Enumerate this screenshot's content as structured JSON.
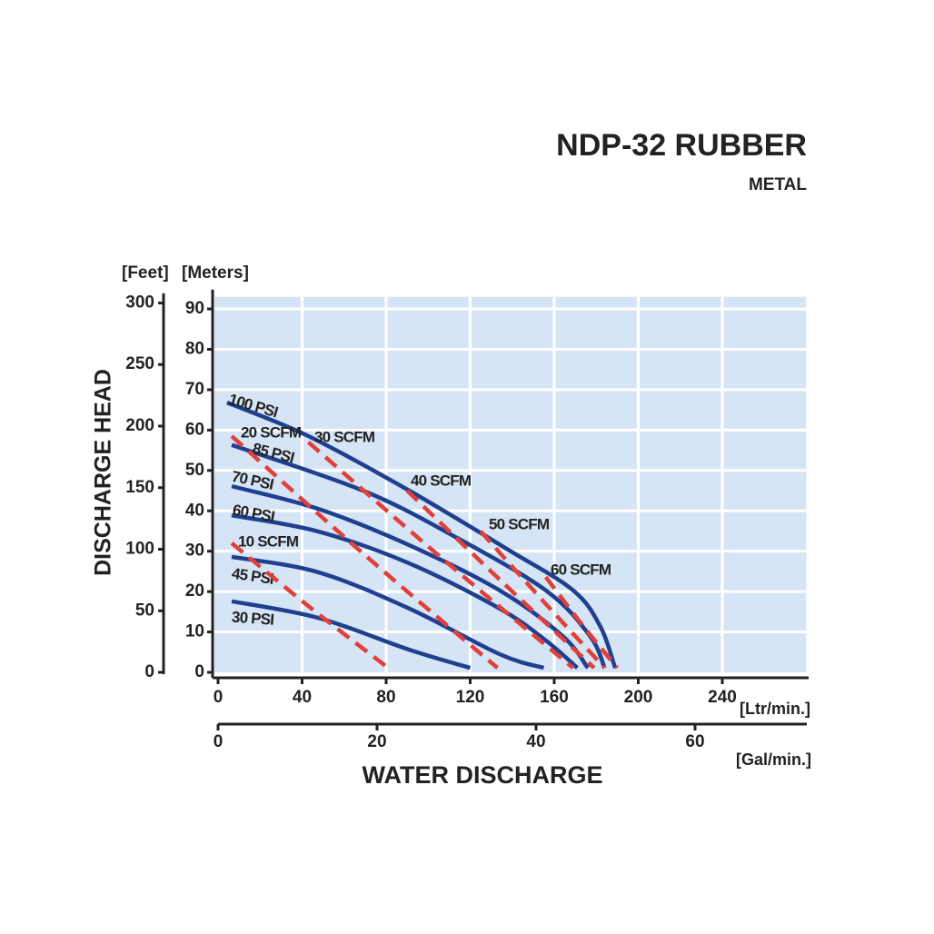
{
  "chart_data": {
    "type": "line",
    "title": "NDP-32 RUBBER",
    "subtitle": "METAL",
    "y_label": "DISCHARGE HEAD",
    "y2_unit": "[Feet]",
    "y_unit": "[Meters]",
    "x_unit": "[Ltr/min.]",
    "x2_unit": "[Gal/min.]",
    "x_label": "WATER DISCHARGE",
    "xlim": [
      0,
      280
    ],
    "xticks": [
      0,
      40,
      80,
      120,
      160,
      200,
      240
    ],
    "x2lim": [
      0,
      74
    ],
    "x2ticks": [
      0,
      20,
      40,
      60
    ],
    "ylim": [
      0,
      93
    ],
    "yticks": [
      0,
      10,
      20,
      30,
      40,
      50,
      60,
      70,
      80,
      90
    ],
    "y2lim": [
      0,
      305
    ],
    "y2ticks": [
      0,
      50,
      100,
      150,
      200,
      250,
      300
    ],
    "grid": true,
    "background": "#d6e5f5",
    "series": [
      {
        "name": "100 PSI",
        "color": "#1f3f8f",
        "dashed": false,
        "x": [
          4.3,
          43,
          91,
          138,
          169,
          182,
          189
        ],
        "values": [
          66.8,
          58.5,
          45,
          30.4,
          20.3,
          11.3,
          1.1
        ]
      },
      {
        "name": "85 PSI",
        "color": "#1f3f8f",
        "dashed": false,
        "x": [
          6.5,
          69,
          112,
          156,
          177,
          184
        ],
        "values": [
          56.3,
          45,
          33.8,
          20.3,
          9,
          1.1
        ]
      },
      {
        "name": "70 PSI",
        "color": "#1f3f8f",
        "dashed": false,
        "x": [
          6.5,
          47.6,
          91,
          134,
          164,
          176
        ],
        "values": [
          46.1,
          40.5,
          31.5,
          20.3,
          9,
          1.1
        ]
      },
      {
        "name": "60 PSI",
        "color": "#1f3f8f",
        "dashed": false,
        "x": [
          6.5,
          47.6,
          91,
          134,
          156,
          171
        ],
        "values": [
          38.9,
          34.9,
          27,
          15.8,
          7.9,
          1.1
        ]
      },
      {
        "name": "45 PSI",
        "color": "#1f3f8f",
        "dashed": false,
        "x": [
          6.5,
          47.6,
          91,
          134,
          155
        ],
        "values": [
          28.6,
          24.8,
          15.8,
          4.5,
          1.1
        ]
      },
      {
        "name": "30 PSI",
        "color": "#1f3f8f",
        "dashed": false,
        "x": [
          6.5,
          47.6,
          91,
          120
        ],
        "values": [
          17.6,
          13.5,
          5.6,
          1.1
        ]
      },
      {
        "name": "10 SCFM",
        "color": "#e0403a",
        "dashed": true,
        "x": [
          6.5,
          44,
          81
        ],
        "values": [
          32,
          16,
          1.1
        ]
      },
      {
        "name": "20 SCFM",
        "color": "#e0403a",
        "dashed": true,
        "x": [
          6.5,
          70,
          133
        ],
        "values": [
          58.5,
          29,
          1.1
        ]
      },
      {
        "name": "30 SCFM",
        "color": "#e0403a",
        "dashed": true,
        "x": [
          43,
          106,
          169
        ],
        "values": [
          57,
          28.5,
          1.1
        ]
      },
      {
        "name": "40 SCFM",
        "color": "#e0403a",
        "dashed": true,
        "x": [
          90,
          135,
          179
        ],
        "values": [
          45,
          22.5,
          1.1
        ]
      },
      {
        "name": "50 SCFM",
        "color": "#e0403a",
        "dashed": true,
        "x": [
          125,
          155,
          184
        ],
        "values": [
          34.9,
          17.5,
          1.1
        ]
      },
      {
        "name": "60 SCFM",
        "color": "#e0403a",
        "dashed": true,
        "x": [
          156,
          173,
          190
        ],
        "values": [
          23.6,
          12,
          1.1
        ]
      }
    ]
  }
}
